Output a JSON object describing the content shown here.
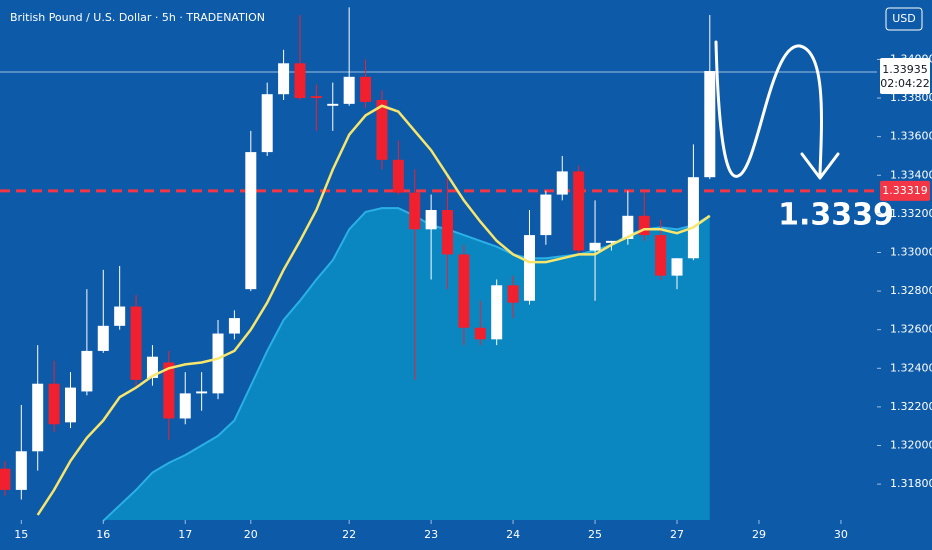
{
  "chart_data": {
    "type": "candlestick",
    "title": "British Pound / U.S. Dollar · 5h · TRADENATION",
    "currency": "USD",
    "open": [
      1.3188,
      1.3177,
      1.3197,
      1.3232,
      1.3212,
      1.3228,
      1.3249,
      1.3262,
      1.3272,
      1.3235,
      1.3243,
      1.3214,
      1.3227,
      1.3227,
      1.3258,
      1.3281,
      1.3352,
      1.3382,
      1.3398,
      1.3381,
      1.3376,
      1.3377,
      1.3391,
      1.3379,
      1.3348,
      1.3331,
      1.3312,
      1.3322,
      1.3299,
      1.3261,
      1.3255,
      1.3283,
      1.3275,
      1.3309,
      1.333,
      1.3342,
      1.3301,
      1.3305,
      1.3307,
      1.3319,
      1.3309,
      1.3288,
      1.3297,
      1.3339
    ],
    "high": [
      1.3192,
      1.3221,
      1.3252,
      1.3244,
      1.3238,
      1.3281,
      1.3291,
      1.3293,
      1.3278,
      1.3252,
      1.3249,
      1.3238,
      1.3238,
      1.3265,
      1.327,
      1.3363,
      1.3388,
      1.3405,
      1.3423,
      1.3387,
      1.3388,
      1.3427,
      1.34,
      1.3384,
      1.3358,
      1.3343,
      1.333,
      1.334,
      1.3304,
      1.3275,
      1.3286,
      1.3288,
      1.3322,
      1.3332,
      1.335,
      1.3345,
      1.3327,
      1.3306,
      1.3332,
      1.3332,
      1.3317,
      1.3297,
      1.3356,
      1.3423
    ],
    "low": [
      1.3174,
      1.3172,
      1.3187,
      1.3207,
      1.3209,
      1.3226,
      1.3248,
      1.326,
      1.3231,
      1.3231,
      1.3203,
      1.3211,
      1.3218,
      1.3224,
      1.3255,
      1.328,
      1.335,
      1.3379,
      1.3379,
      1.3363,
      1.3363,
      1.3376,
      1.3375,
      1.3343,
      1.333,
      1.3234,
      1.3286,
      1.3281,
      1.3252,
      1.3252,
      1.3252,
      1.3266,
      1.3273,
      1.3304,
      1.3327,
      1.3299,
      1.3275,
      1.3301,
      1.3304,
      1.3306,
      1.3286,
      1.3281,
      1.3296,
      1.3338
    ],
    "close": [
      1.3177,
      1.3197,
      1.3232,
      1.3211,
      1.323,
      1.3249,
      1.3262,
      1.3272,
      1.3234,
      1.3246,
      1.3214,
      1.3227,
      1.3228,
      1.3258,
      1.3266,
      1.3352,
      1.3382,
      1.3398,
      1.338,
      1.338,
      1.3377,
      1.3391,
      1.3378,
      1.3348,
      1.3331,
      1.3312,
      1.3322,
      1.3299,
      1.3261,
      1.3255,
      1.3283,
      1.3274,
      1.3309,
      1.333,
      1.3342,
      1.3301,
      1.3305,
      1.3306,
      1.3319,
      1.3309,
      1.3288,
      1.3297,
      1.3339,
      1.3394
    ],
    "up_color": "#ffffff",
    "down_color": "#f0202e",
    "ma": {
      "color": "#f7e66b",
      "values": [
        null,
        null,
        1.3164,
        1.3177,
        1.3192,
        1.3204,
        1.3213,
        1.3225,
        1.323,
        1.3236,
        1.324,
        1.3242,
        1.3243,
        1.3245,
        1.3249,
        1.326,
        1.3274,
        1.3291,
        1.3306,
        1.3322,
        1.3343,
        1.3361,
        1.3371,
        1.3376,
        1.3373,
        1.3363,
        1.3353,
        1.334,
        1.3327,
        1.3316,
        1.3306,
        1.3299,
        1.3295,
        1.3295,
        1.3297,
        1.3299,
        1.3299,
        1.3304,
        1.3308,
        1.3312,
        1.3312,
        1.331,
        1.3313,
        1.3319
      ]
    },
    "area": {
      "color": "#0a8cc2",
      "values": [
        null,
        null,
        null,
        null,
        null,
        null,
        1.3161,
        1.3169,
        1.3177,
        1.3186,
        1.3191,
        1.3195,
        1.32,
        1.3205,
        1.3213,
        1.3231,
        1.3249,
        1.3265,
        1.3275,
        1.3286,
        1.3296,
        1.3312,
        1.3321,
        1.3323,
        1.3323,
        1.3319,
        1.3314,
        1.3312,
        1.3309,
        1.3306,
        1.3303,
        1.3299,
        1.3297,
        1.3297,
        1.3298,
        1.3299,
        1.3301,
        1.3304,
        1.3309,
        1.3312,
        1.3313,
        1.3312,
        1.3314,
        1.3319
      ]
    },
    "ylim": [
      1.31614,
      1.34308
    ],
    "yticks": [
      {
        "value": 1.318,
        "label": "1.31800"
      },
      {
        "value": 1.32,
        "label": "1.32000"
      },
      {
        "value": 1.322,
        "label": "1.32200"
      },
      {
        "value": 1.324,
        "label": "1.32400"
      },
      {
        "value": 1.326,
        "label": "1.32600"
      },
      {
        "value": 1.328,
        "label": "1.32800"
      },
      {
        "value": 1.33,
        "label": "1.33000"
      },
      {
        "value": 1.332,
        "label": "1.33200"
      },
      {
        "value": 1.334,
        "label": "1.33400"
      },
      {
        "value": 1.336,
        "label": "1.33600"
      },
      {
        "value": 1.338,
        "label": "1.33800"
      },
      {
        "value": 1.34,
        "label": "1.34000"
      }
    ],
    "xlim": [
      -0.3,
      53.2
    ],
    "xticks": [
      {
        "value": 1,
        "label": "15"
      },
      {
        "value": 6,
        "label": "16"
      },
      {
        "value": 11,
        "label": "17"
      },
      {
        "value": 15,
        "label": "20"
      },
      {
        "value": 21,
        "label": "22"
      },
      {
        "value": 26,
        "label": "23"
      },
      {
        "value": 31,
        "label": "24"
      },
      {
        "value": 36,
        "label": "25"
      },
      {
        "value": 41,
        "label": "27"
      },
      {
        "value": 46,
        "label": "29"
      },
      {
        "value": 51,
        "label": "30"
      }
    ],
    "reference_line": {
      "value": 1.33319,
      "color": "#f23645"
    },
    "last_price": {
      "value": 1.33935,
      "countdown": "02:04:22"
    },
    "annotation": "1.3339"
  }
}
